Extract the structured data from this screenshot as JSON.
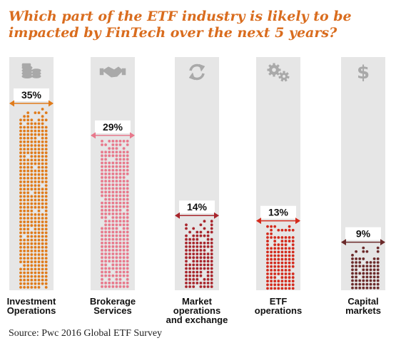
{
  "title": "Which part of the ETF industry is likely to be impacted by FinTech over the next 5 years?",
  "source": "Source: Pwc 2016 Global ETF Survey",
  "colors": {
    "title": "#d96c1e",
    "column_bg": "#e6e6e6",
    "icon": "#a9a9a9"
  },
  "chart_data": {
    "type": "bar",
    "categories": [
      "Investment Operations",
      "Brokerage Services",
      "Market operations and exchange",
      "ETF operations",
      "Capital markets"
    ],
    "category_lines": [
      [
        "Investment",
        "Operations"
      ],
      [
        "Brokerage",
        "Services"
      ],
      [
        "Market",
        "operations",
        "and exchange"
      ],
      [
        "ETF",
        "operations"
      ],
      [
        "Capital",
        "markets"
      ]
    ],
    "values": [
      35,
      29,
      14,
      13,
      9
    ],
    "value_labels": [
      "35%",
      "29%",
      "14%",
      "13%",
      "9%"
    ],
    "icons": [
      "coins-icon",
      "handshake-icon",
      "refresh-icon",
      "gears-icon",
      "dollar-icon"
    ],
    "bar_colors": [
      "#e07b1a",
      "#e8798c",
      "#a8252c",
      "#d42a1c",
      "#6b2a2a"
    ],
    "ylim": [
      0,
      35
    ],
    "grid": false
  }
}
